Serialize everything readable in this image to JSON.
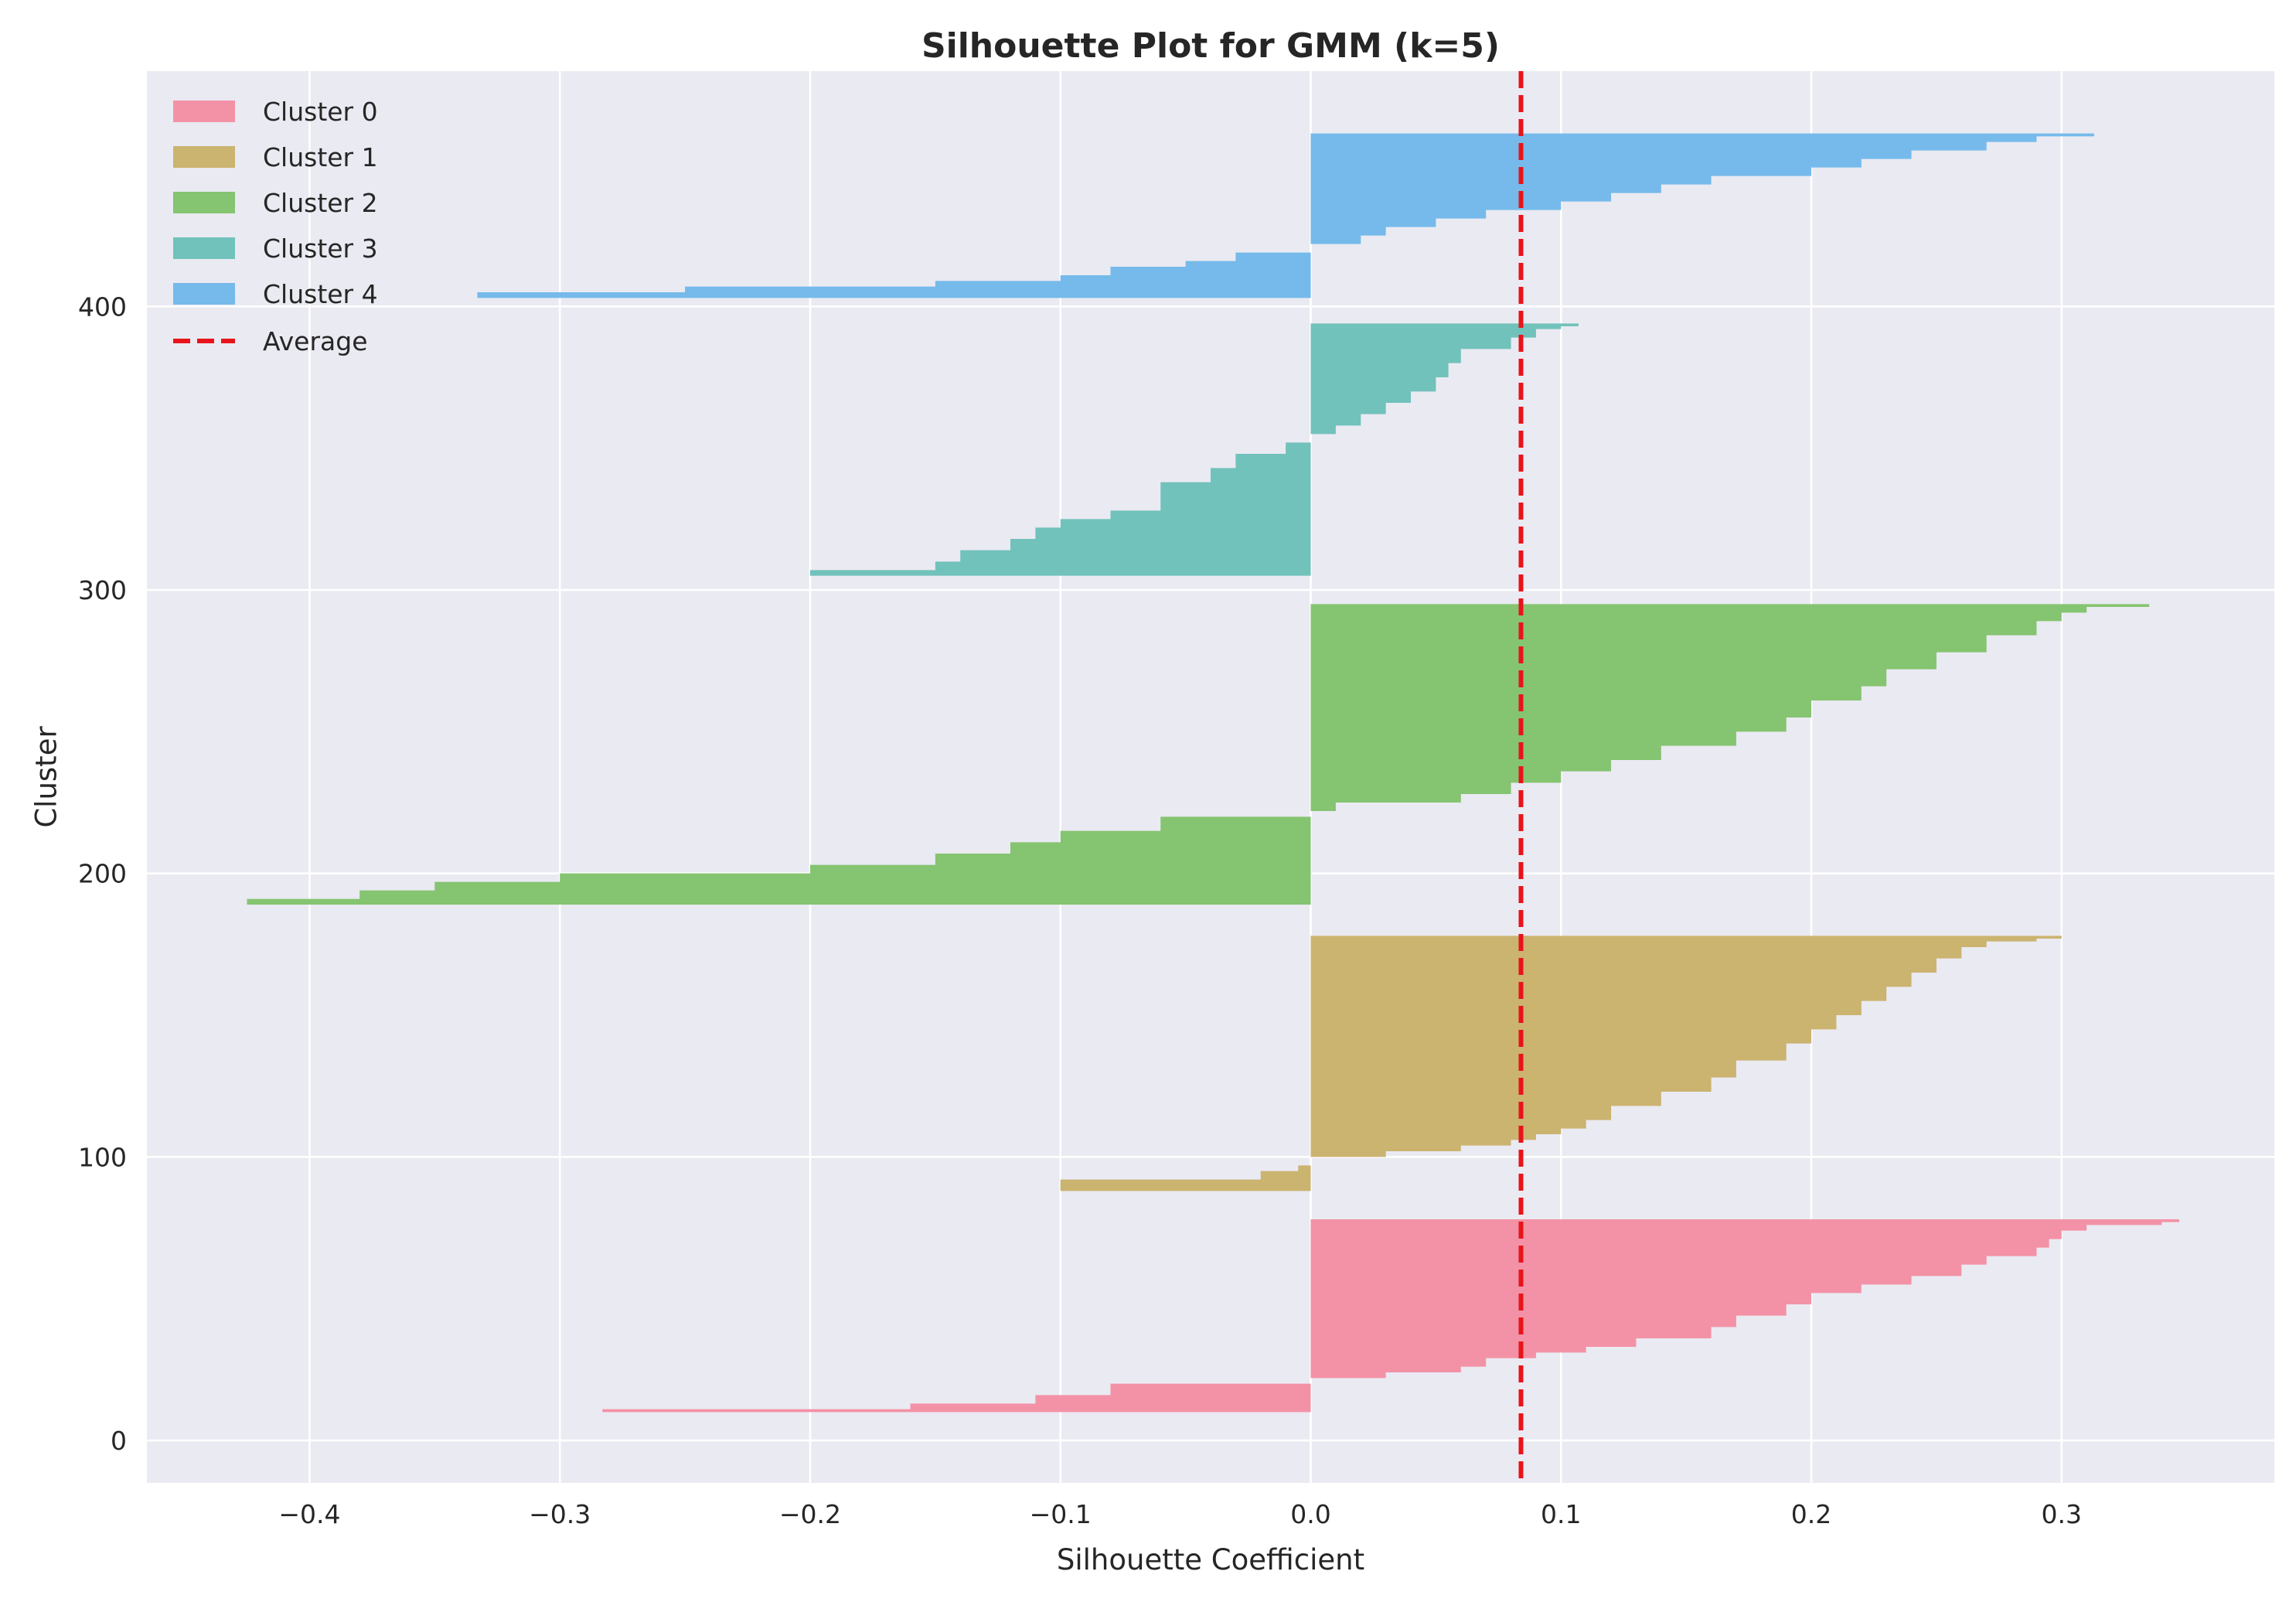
{
  "chart_data": {
    "type": "area",
    "title": "Silhouette Plot for GMM (k=5)",
    "xlabel": "Silhouette Coefficient",
    "ylabel": "Cluster",
    "xlim": [
      -0.465,
      0.385
    ],
    "ylim": [
      -15,
      483
    ],
    "xticks": [
      -0.4,
      -0.3,
      -0.2,
      -0.1,
      0.0,
      0.1,
      0.2,
      0.3
    ],
    "xtick_labels": [
      "−0.4",
      "−0.3",
      "−0.2",
      "−0.1",
      "0.0",
      "0.1",
      "0.2",
      "0.3"
    ],
    "yticks": [
      0,
      100,
      200,
      300,
      400
    ],
    "ytick_labels": [
      "0",
      "100",
      "200",
      "300",
      "400"
    ],
    "grid": true,
    "legend_position": "top-left",
    "average_label": "Average",
    "average_value": 0.084,
    "average_color": "#e8141a",
    "series": [
      {
        "name": "Cluster 0",
        "color": "#f28ea2",
        "y_start": 10,
        "values_by_y": [
          [
            10,
            -0.283
          ],
          [
            11,
            -0.16
          ],
          [
            13,
            -0.11
          ],
          [
            16,
            -0.08
          ],
          [
            20,
            0.0
          ],
          [
            22,
            0.03
          ],
          [
            24,
            0.06
          ],
          [
            26,
            0.07
          ],
          [
            29,
            0.09
          ],
          [
            31,
            0.11
          ],
          [
            33,
            0.13
          ],
          [
            36,
            0.16
          ],
          [
            40,
            0.17
          ],
          [
            44,
            0.19
          ],
          [
            48,
            0.2
          ],
          [
            52,
            0.22
          ],
          [
            55,
            0.24
          ],
          [
            58,
            0.26
          ],
          [
            62,
            0.27
          ],
          [
            65,
            0.29
          ],
          [
            68,
            0.295
          ],
          [
            71,
            0.3
          ],
          [
            74,
            0.31
          ],
          [
            76,
            0.34
          ],
          [
            77,
            0.347
          ]
        ]
      },
      {
        "name": "Cluster 1",
        "color": "#c9b06a",
        "y_start": 88,
        "values_by_y": [
          [
            88,
            -0.1
          ],
          [
            92,
            -0.02
          ],
          [
            95,
            -0.005
          ],
          [
            97,
            0.0
          ],
          [
            100,
            0.03
          ],
          [
            102,
            0.06
          ],
          [
            104,
            0.08
          ],
          [
            106,
            0.09
          ],
          [
            108,
            0.1
          ],
          [
            110,
            0.11
          ],
          [
            113,
            0.12
          ],
          [
            118,
            0.14
          ],
          [
            123,
            0.16
          ],
          [
            128,
            0.17
          ],
          [
            134,
            0.19
          ],
          [
            140,
            0.2
          ],
          [
            145,
            0.21
          ],
          [
            150,
            0.22
          ],
          [
            155,
            0.23
          ],
          [
            160,
            0.24
          ],
          [
            165,
            0.25
          ],
          [
            170,
            0.26
          ],
          [
            174,
            0.27
          ],
          [
            176,
            0.29
          ],
          [
            177,
            0.3
          ]
        ]
      },
      {
        "name": "Cluster 2",
        "color": "#80c26a",
        "y_start": 189,
        "values_by_y": [
          [
            189,
            -0.425
          ],
          [
            191,
            -0.38
          ],
          [
            194,
            -0.35
          ],
          [
            197,
            -0.3
          ],
          [
            200,
            -0.2
          ],
          [
            203,
            -0.15
          ],
          [
            207,
            -0.12
          ],
          [
            211,
            -0.1
          ],
          [
            215,
            -0.06
          ],
          [
            220,
            -0.0
          ],
          [
            222,
            0.01
          ],
          [
            225,
            0.06
          ],
          [
            228,
            0.08
          ],
          [
            232,
            0.1
          ],
          [
            236,
            0.12
          ],
          [
            240,
            0.14
          ],
          [
            245,
            0.17
          ],
          [
            250,
            0.19
          ],
          [
            255,
            0.2
          ],
          [
            261,
            0.22
          ],
          [
            266,
            0.23
          ],
          [
            272,
            0.25
          ],
          [
            278,
            0.27
          ],
          [
            284,
            0.29
          ],
          [
            289,
            0.3
          ],
          [
            292,
            0.31
          ],
          [
            294,
            0.335
          ]
        ]
      },
      {
        "name": "Cluster 3",
        "color": "#6bbfb8",
        "y_start": 305,
        "values_by_y": [
          [
            305,
            -0.2
          ],
          [
            307,
            -0.15
          ],
          [
            310,
            -0.14
          ],
          [
            314,
            -0.12
          ],
          [
            318,
            -0.11
          ],
          [
            322,
            -0.1
          ],
          [
            325,
            -0.08
          ],
          [
            328,
            -0.06
          ],
          [
            333,
            -0.06
          ],
          [
            338,
            -0.04
          ],
          [
            343,
            -0.03
          ],
          [
            348,
            -0.01
          ],
          [
            352,
            0.0
          ],
          [
            355,
            0.01
          ],
          [
            358,
            0.02
          ],
          [
            362,
            0.03
          ],
          [
            366,
            0.04
          ],
          [
            370,
            0.05
          ],
          [
            375,
            0.055
          ],
          [
            380,
            0.06
          ],
          [
            385,
            0.08
          ],
          [
            389,
            0.09
          ],
          [
            392,
            0.1
          ],
          [
            393,
            0.107
          ]
        ]
      },
      {
        "name": "Cluster 4",
        "color": "#6fb7ea",
        "y_start": 403,
        "values_by_y": [
          [
            403,
            -0.333
          ],
          [
            405,
            -0.25
          ],
          [
            407,
            -0.15
          ],
          [
            409,
            -0.1
          ],
          [
            411,
            -0.08
          ],
          [
            414,
            -0.05
          ],
          [
            416,
            -0.03
          ],
          [
            419,
            -0.0
          ],
          [
            422,
            0.02
          ],
          [
            425,
            0.03
          ],
          [
            428,
            0.05
          ],
          [
            431,
            0.07
          ],
          [
            434,
            0.1
          ],
          [
            437,
            0.12
          ],
          [
            440,
            0.14
          ],
          [
            443,
            0.16
          ],
          [
            446,
            0.2
          ],
          [
            449,
            0.22
          ],
          [
            452,
            0.24
          ],
          [
            455,
            0.27
          ],
          [
            458,
            0.29
          ],
          [
            460,
            0.313
          ]
        ]
      }
    ]
  }
}
